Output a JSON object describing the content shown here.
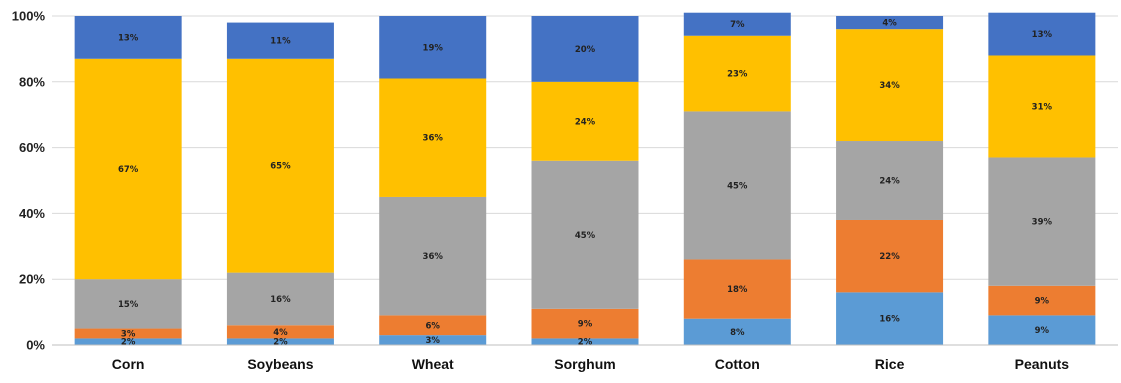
{
  "chart_data": {
    "type": "bar",
    "stacked": true,
    "percent": true,
    "categories": [
      "Corn",
      "Soybeans",
      "Wheat",
      "Sorghum",
      "Cotton",
      "Rice",
      "Peanuts"
    ],
    "series": [
      {
        "values": [
          2,
          2,
          3,
          2,
          8,
          16,
          9
        ],
        "labels": [
          "2%",
          "2%",
          "3%",
          "2%",
          "8%",
          "16%",
          "9%"
        ],
        "color": "#5b9bd5"
      },
      {
        "values": [
          3,
          4,
          6,
          9,
          18,
          22,
          9
        ],
        "labels": [
          "3%",
          "4%",
          "6%",
          "9%",
          "18%",
          "22%",
          "9%"
        ],
        "color": "#ed7d31"
      },
      {
        "values": [
          15,
          16,
          36,
          45,
          45,
          24,
          39
        ],
        "labels": [
          "15%",
          "16%",
          "36%",
          "45%",
          "45%",
          "24%",
          "39%"
        ],
        "color": "#a5a5a5"
      },
      {
        "values": [
          67,
          65,
          36,
          24,
          23,
          34,
          31
        ],
        "labels": [
          "67%",
          "65%",
          "36%",
          "24%",
          "23%",
          "34%",
          "31%"
        ],
        "color": "#ffc000"
      },
      {
        "values": [
          13,
          11,
          19,
          20,
          7,
          4,
          13
        ],
        "labels": [
          "13%",
          "11%",
          "19%",
          "20%",
          "7%",
          "4%",
          "13%"
        ],
        "color": "#4472c4"
      }
    ],
    "ylim": [
      0,
      100
    ],
    "yticks": [
      0,
      20,
      40,
      60,
      80,
      100
    ],
    "ytick_labels": [
      "0%",
      "20%",
      "40%",
      "60%",
      "80%",
      "100%"
    ],
    "grid": true,
    "title": "",
    "xlabel": "",
    "ylabel": ""
  }
}
